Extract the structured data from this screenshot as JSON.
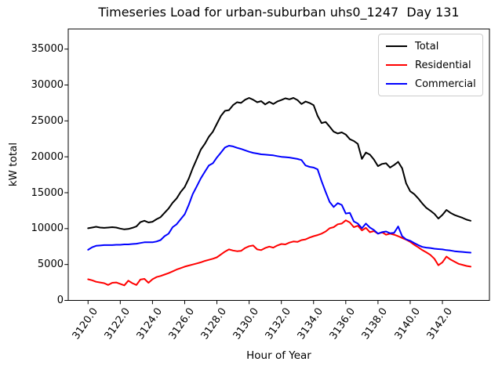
{
  "figure_background": "#ffffff",
  "chart_data": {
    "type": "line",
    "title": "Timeseries Load for urban-suburban uhs0_1247  Day 131",
    "xlabel": "Hour of Year",
    "ylabel": "kW total",
    "grid": false,
    "legend_position": "upper right",
    "xlim": [
      3118.77,
      3144.92
    ],
    "ylim": [
      0,
      37800
    ],
    "x_start": 3120.0,
    "x_step": 0.25,
    "x_count": 96,
    "x_ticks": {
      "values": [
        3120,
        3122,
        3124,
        3126,
        3128,
        3130,
        3132,
        3134,
        3136,
        3138,
        3140,
        3142
      ],
      "labels": [
        "3120.0",
        "3122.0",
        "3124.0",
        "3126.0",
        "3128.0",
        "3130.0",
        "3132.0",
        "3134.0",
        "3136.0",
        "3138.0",
        "3140.0",
        "3142.0"
      ]
    },
    "y_ticks": {
      "values": [
        0,
        5000,
        10000,
        15000,
        20000,
        25000,
        30000,
        35000
      ],
      "labels": [
        "0",
        "5000",
        "10000",
        "15000",
        "20000",
        "25000",
        "30000",
        "35000"
      ]
    },
    "series": [
      {
        "name": "Total",
        "color": "#000000",
        "values": [
          10050,
          10150,
          10250,
          10150,
          10100,
          10150,
          10200,
          10150,
          10000,
          9900,
          9950,
          10100,
          10300,
          10900,
          11100,
          10850,
          10950,
          11300,
          11600,
          12200,
          12800,
          13600,
          14200,
          15100,
          15800,
          16950,
          18400,
          19700,
          21000,
          21800,
          22800,
          23500,
          24600,
          25700,
          26400,
          26500,
          27200,
          27600,
          27500,
          27950,
          28200,
          27950,
          27600,
          27750,
          27300,
          27650,
          27350,
          27700,
          27900,
          28150,
          28000,
          28200,
          27900,
          27350,
          27700,
          27500,
          27200,
          25700,
          24700,
          24850,
          24200,
          23500,
          23250,
          23400,
          23100,
          22450,
          22200,
          21800,
          19700,
          20600,
          20300,
          19600,
          18700,
          19000,
          19100,
          18500,
          18850,
          19300,
          18400,
          16300,
          15200,
          14800,
          14200,
          13500,
          12900,
          12500,
          12050,
          11400,
          11900,
          12600,
          12200,
          11900,
          11700,
          11500,
          11250,
          11100
        ]
      },
      {
        "name": "Residential",
        "color": "#ff0000",
        "values": [
          2950,
          2800,
          2600,
          2500,
          2400,
          2150,
          2450,
          2500,
          2300,
          2100,
          2750,
          2400,
          2150,
          2900,
          3000,
          2450,
          2950,
          3250,
          3400,
          3600,
          3800,
          4050,
          4300,
          4500,
          4700,
          4850,
          5000,
          5150,
          5300,
          5500,
          5650,
          5800,
          6000,
          6400,
          6800,
          7100,
          6950,
          6850,
          6900,
          7300,
          7550,
          7650,
          7100,
          7000,
          7300,
          7500,
          7350,
          7650,
          7850,
          7800,
          8050,
          8200,
          8150,
          8400,
          8500,
          8750,
          8950,
          9100,
          9300,
          9600,
          10050,
          10200,
          10600,
          10700,
          11150,
          10850,
          10200,
          10400,
          9750,
          10100,
          9500,
          9650,
          9300,
          9500,
          9150,
          9300,
          9150,
          8950,
          8700,
          8450,
          8150,
          7750,
          7400,
          7000,
          6700,
          6350,
          5800,
          4900,
          5300,
          6100,
          5700,
          5400,
          5100,
          4950,
          4800,
          4700
        ]
      },
      {
        "name": "Commercial",
        "color": "#0000ff",
        "values": [
          7050,
          7400,
          7600,
          7650,
          7700,
          7700,
          7700,
          7750,
          7750,
          7800,
          7800,
          7850,
          7900,
          8000,
          8100,
          8100,
          8100,
          8200,
          8400,
          8950,
          9300,
          10200,
          10600,
          11300,
          12000,
          13300,
          14800,
          15900,
          17000,
          17900,
          18800,
          19100,
          19900,
          20600,
          21300,
          21550,
          21450,
          21250,
          21100,
          20900,
          20700,
          20550,
          20450,
          20350,
          20300,
          20250,
          20200,
          20100,
          20000,
          19950,
          19900,
          19800,
          19700,
          19550,
          18800,
          18600,
          18500,
          18250,
          16600,
          15100,
          13700,
          13000,
          13550,
          13300,
          12100,
          12200,
          11000,
          10700,
          10050,
          10700,
          10150,
          9800,
          9300,
          9500,
          9600,
          9350,
          9400,
          10300,
          8950,
          8500,
          8300,
          8000,
          7700,
          7450,
          7350,
          7300,
          7200,
          7150,
          7100,
          7000,
          6950,
          6850,
          6800,
          6750,
          6700,
          6650
        ]
      }
    ]
  }
}
